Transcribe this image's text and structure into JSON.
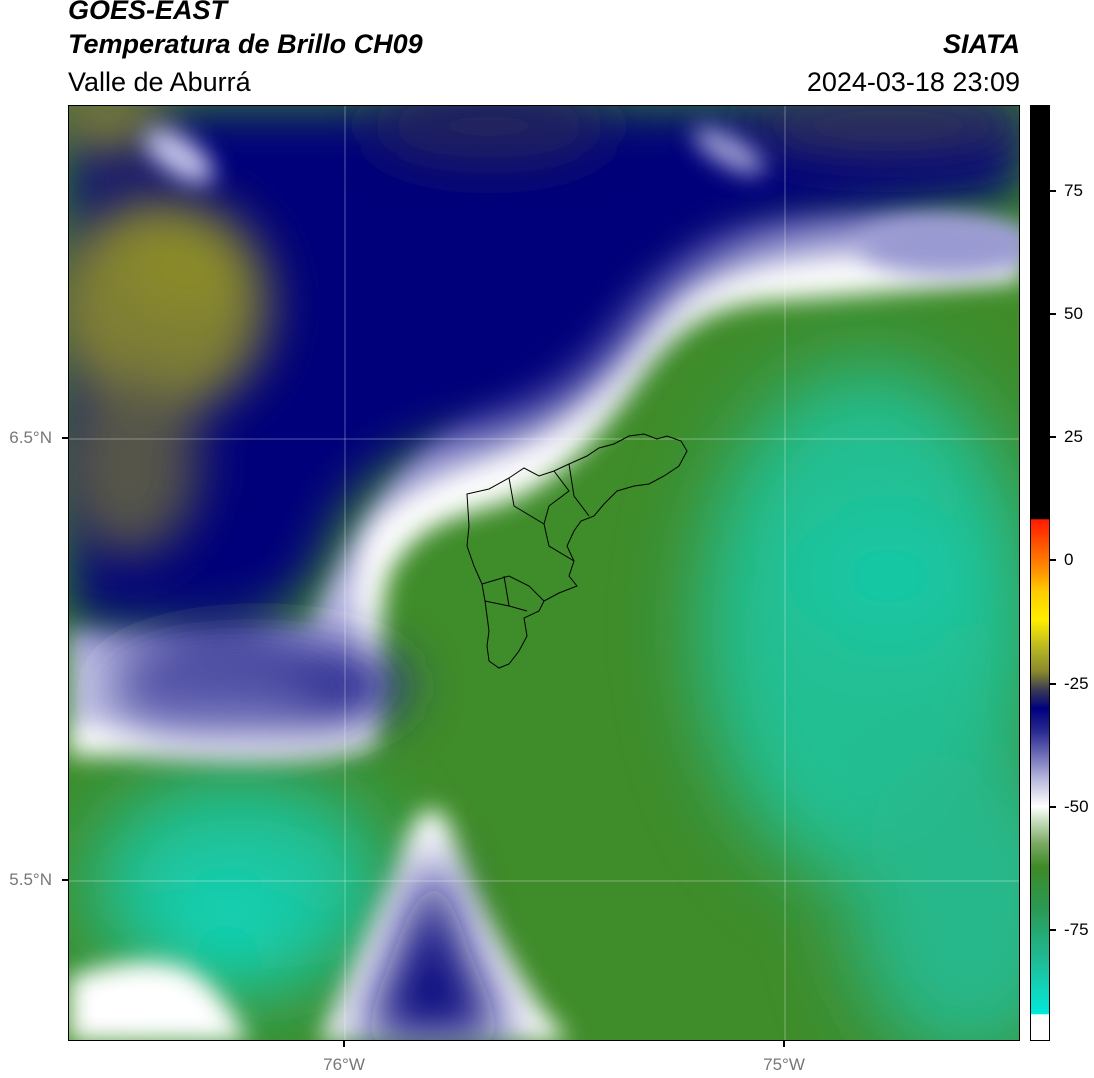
{
  "header": {
    "satellite": "GOES-EAST",
    "product": "Temperatura de Brillo CH09",
    "region": "Valle de Aburrá",
    "organization": "SIATA",
    "datetime": "2024-03-18 23:09"
  },
  "map": {
    "lat_labels": [
      "6.5°N",
      "5.5°N"
    ],
    "lon_labels": [
      "76°W",
      "75°W"
    ],
    "gridlines": true,
    "outline": "Valle de Aburrá municipalities boundary"
  },
  "colorbar": {
    "ticks": [
      "75",
      "50",
      "25",
      "0",
      "-25",
      "-50",
      "-75"
    ],
    "colors": {
      "black": "#000000",
      "red": "#ff1a00",
      "orange": "#ff8c00",
      "yellow": "#ffee00",
      "olive": "#8a8a2a",
      "navy": "#000080",
      "lavender": "#a8a8d8",
      "white": "#ffffff",
      "green": "#3d8a28",
      "turquoise": "#10d8c0"
    }
  }
}
